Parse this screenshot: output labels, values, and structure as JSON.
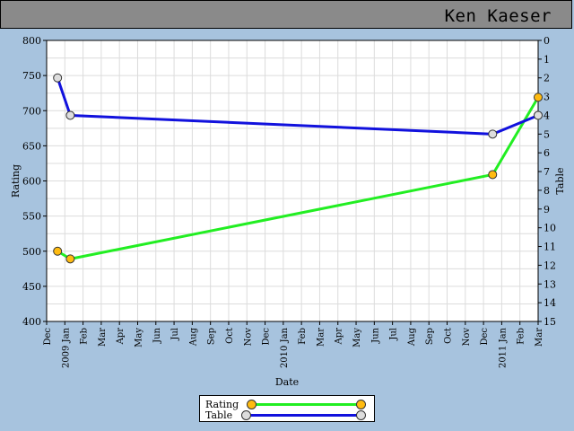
{
  "header": {
    "title": "Ken Kaeser"
  },
  "chart_data": {
    "type": "line",
    "xlabel": "Date",
    "ylabel_left": "Rating",
    "ylabel_right": "Table",
    "ylim_left": [
      400,
      800
    ],
    "ylim_right": [
      0,
      15
    ],
    "right_axis_inverted": true,
    "grid": true,
    "legend_position": "bottom",
    "x_ticks": [
      {
        "label": "Dec",
        "m": 0
      },
      {
        "label": "2009 Jan",
        "m": 1
      },
      {
        "label": "Feb",
        "m": 2
      },
      {
        "label": "Mar",
        "m": 3
      },
      {
        "label": "Apr",
        "m": 4
      },
      {
        "label": "May",
        "m": 5
      },
      {
        "label": "Jun",
        "m": 6
      },
      {
        "label": "Jul",
        "m": 7
      },
      {
        "label": "Aug",
        "m": 8
      },
      {
        "label": "Sep",
        "m": 9
      },
      {
        "label": "Oct",
        "m": 10
      },
      {
        "label": "Nov",
        "m": 11
      },
      {
        "label": "Dec",
        "m": 12
      },
      {
        "label": "2010 Jan",
        "m": 13
      },
      {
        "label": "Feb",
        "m": 14
      },
      {
        "label": "Mar",
        "m": 15
      },
      {
        "label": "Apr",
        "m": 16
      },
      {
        "label": "May",
        "m": 17
      },
      {
        "label": "Jun",
        "m": 18
      },
      {
        "label": "Jul",
        "m": 19
      },
      {
        "label": "Aug",
        "m": 20
      },
      {
        "label": "Sep",
        "m": 21
      },
      {
        "label": "Oct",
        "m": 22
      },
      {
        "label": "Nov",
        "m": 23
      },
      {
        "label": "Dec",
        "m": 24
      },
      {
        "label": "2011 Jan",
        "m": 25
      },
      {
        "label": "Feb",
        "m": 26
      },
      {
        "label": "Mar",
        "m": 27
      }
    ],
    "y_ticks_left": [
      400,
      450,
      500,
      550,
      600,
      650,
      700,
      750,
      800
    ],
    "y_ticks_right": [
      0,
      1,
      2,
      3,
      4,
      5,
      6,
      7,
      8,
      9,
      10,
      11,
      12,
      13,
      14,
      15
    ],
    "series": [
      {
        "name": "Rating",
        "axis": "left",
        "color": "#22ee22",
        "marker_color": "#ffbb11",
        "points": [
          [
            0.6,
            500
          ],
          [
            1.3,
            489
          ],
          [
            24.5,
            609
          ],
          [
            27.0,
            719
          ]
        ]
      },
      {
        "name": "Table",
        "axis": "right",
        "color": "#1111dd",
        "marker_color": "#dddddd",
        "points": [
          [
            0.6,
            2
          ],
          [
            1.3,
            4
          ],
          [
            24.5,
            5
          ],
          [
            27.0,
            4
          ]
        ]
      }
    ]
  }
}
